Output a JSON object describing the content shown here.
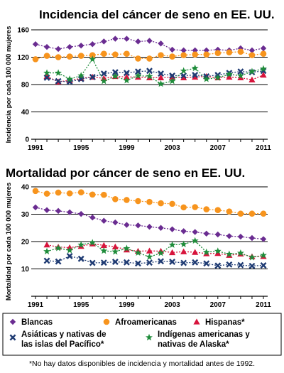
{
  "chart_data": [
    {
      "type": "line",
      "title": "Incidencia del cáncer de seno en EE. UU.",
      "ylabel": "Incidencia por cada 100 000 mujeres",
      "xlabel": "",
      "ylim": [
        0,
        160
      ],
      "yticks": [
        0,
        40,
        80,
        120,
        160
      ],
      "x": [
        1991,
        1992,
        1993,
        1994,
        1995,
        1996,
        1997,
        1998,
        1999,
        2000,
        2001,
        2002,
        2003,
        2004,
        2005,
        2006,
        2007,
        2008,
        2009,
        2010,
        2011
      ],
      "xtick_labels": [
        "1991",
        "1995",
        "1999",
        "2003",
        "2007",
        "2011"
      ],
      "grid": "horizontal",
      "series": [
        {
          "name": "Blancas",
          "color": "#6a2c91",
          "marker": "diamond",
          "values": [
            139,
            135,
            132,
            135,
            137,
            139,
            143,
            147,
            147,
            143,
            144,
            140,
            131,
            130,
            130,
            130,
            131,
            130,
            133,
            130,
            133
          ]
        },
        {
          "name": "Afroamericanas",
          "color": "#f7941d",
          "marker": "circle",
          "values": [
            117,
            122,
            120,
            121,
            122,
            123,
            125,
            124,
            125,
            118,
            118,
            123,
            121,
            123,
            124,
            124,
            126,
            127,
            128,
            123,
            125
          ]
        },
        {
          "name": "Hispanas*",
          "color": "#d7143c",
          "marker": "triangle",
          "values": [
            null,
            92,
            84,
            86,
            89,
            91,
            89,
            92,
            91,
            91,
            90,
            90,
            91,
            90,
            91,
            92,
            90,
            91,
            90,
            87,
            94
          ]
        },
        {
          "name": "Asiáticas y nativas de las islas del Pacífico*",
          "color": "#1f3b73",
          "marker": "x",
          "values": [
            null,
            90,
            85,
            84,
            88,
            91,
            96,
            98,
            97,
            99,
            100,
            96,
            93,
            93,
            94,
            92,
            94,
            97,
            99,
            98,
            100
          ]
        },
        {
          "name": "Indígenas americanas y nativas de Alaska*",
          "color": "#1e8c3a",
          "marker": "star",
          "values": [
            null,
            97,
            97,
            88,
            93,
            117,
            85,
            92,
            86,
            93,
            92,
            81,
            85,
            100,
            104,
            88,
            90,
            95,
            93,
            99,
            103
          ]
        }
      ]
    },
    {
      "type": "line",
      "title": "Mortalidad por cáncer de seno en EE. UU.",
      "ylabel": "Mortalidad por cada 100 000 mujeres",
      "xlabel": "",
      "ylim": [
        0,
        40
      ],
      "yticks": [
        10,
        20,
        30,
        40
      ],
      "x": [
        1991,
        1992,
        1993,
        1994,
        1995,
        1996,
        1997,
        1998,
        1999,
        2000,
        2001,
        2002,
        2003,
        2004,
        2005,
        2006,
        2007,
        2008,
        2009,
        2010,
        2011
      ],
      "xtick_labels": [
        "1991",
        "1995",
        "1999",
        "2003",
        "2007",
        "2011"
      ],
      "grid": "horizontal",
      "series": [
        {
          "name": "Blancas",
          "color": "#6a2c91",
          "marker": "diamond",
          "values": [
            32.5,
            31.5,
            31.2,
            30.7,
            30.1,
            28.8,
            27.6,
            27.0,
            26.1,
            25.9,
            25.4,
            25.0,
            24.5,
            23.8,
            23.5,
            22.9,
            22.6,
            22.0,
            21.8,
            21.3,
            20.9
          ]
        },
        {
          "name": "Afroamericanas",
          "color": "#f7941d",
          "marker": "circle",
          "values": [
            38.5,
            37.5,
            37.9,
            37.6,
            38.0,
            37.2,
            37.1,
            35.5,
            35.2,
            34.8,
            34.5,
            34.0,
            33.8,
            32.5,
            32.6,
            31.8,
            31.5,
            31.0,
            30.2,
            30.2,
            30.2
          ]
        },
        {
          "name": "Hispanas*",
          "color": "#d7143c",
          "marker": "triangle",
          "values": [
            null,
            18.8,
            18.0,
            17.8,
            18.3,
            19.2,
            18.6,
            18.1,
            17.0,
            16.5,
            16.6,
            16.5,
            16.0,
            16.3,
            16.1,
            15.6,
            15.7,
            15.0,
            15.5,
            14.5,
            14.6
          ]
        },
        {
          "name": "Asiáticas y nativas de las islas del Pacífico*",
          "color": "#1f3b73",
          "marker": "x",
          "values": [
            null,
            13.0,
            12.7,
            14.7,
            13.7,
            12.2,
            12.3,
            12.6,
            12.4,
            12.0,
            12.3,
            12.8,
            12.6,
            12.2,
            12.4,
            12.0,
            11.2,
            11.6,
            11.4,
            11.1,
            11.3
          ]
        },
        {
          "name": "Indígenas americanas y nativas de Alaska*",
          "color": "#1e8c3a",
          "marker": "star",
          "values": [
            null,
            16.4,
            17.6,
            16.8,
            18.8,
            19.6,
            16.6,
            16.3,
            17.5,
            15.9,
            14.4,
            15.8,
            18.8,
            19.0,
            20.3,
            16.1,
            16.5,
            15.4,
            15.8,
            14.2,
            15.0
          ]
        }
      ]
    }
  ],
  "legend": {
    "items": [
      {
        "label": "Blancas",
        "marker": "diamond",
        "color": "#6a2c91"
      },
      {
        "label": "Afroamericanas",
        "marker": "circle",
        "color": "#f7941d"
      },
      {
        "label": "Hispanas*",
        "marker": "triangle",
        "color": "#d7143c"
      },
      {
        "label": "Asiáticas y nativas de\nlas islas del Pacífico*",
        "marker": "x",
        "color": "#1f3b73"
      },
      {
        "label": "Indígenas americanas y\nnativas de Alaska*",
        "marker": "star",
        "color": "#1e8c3a"
      }
    ]
  },
  "footnote": "*No hay datos disponibles de incidencia y mortalidad antes de 1992."
}
